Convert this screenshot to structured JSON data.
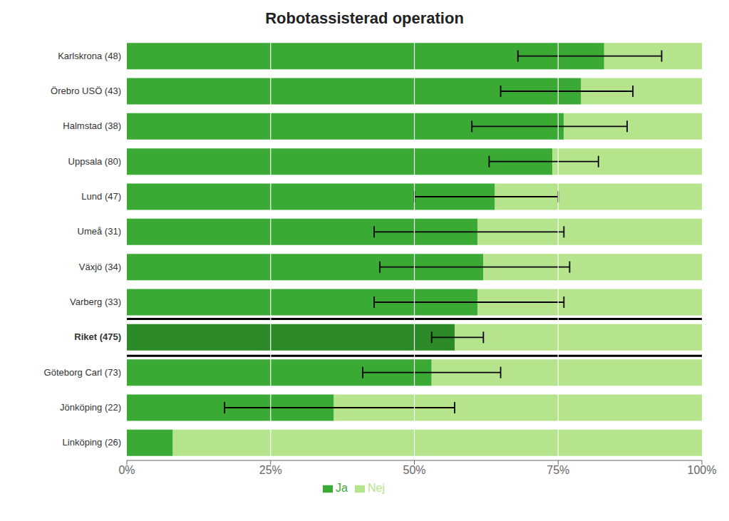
{
  "chart_data": {
    "type": "bar",
    "title": "Robotassisterad operation",
    "orientation": "horizontal",
    "stacked": true,
    "grid": true,
    "legend": "bottom",
    "categories": [
      "Karlskrona (48)",
      "Örebro USÖ (43)",
      "Halmstad (38)",
      "Uppsala (80)",
      "Lund (47)",
      "Umeå (31)",
      "Växjö (34)",
      "Varberg (33)",
      "Riket (475)",
      "Göteborg Carl (73)",
      "Jönköping (22)",
      "Linköping (26)"
    ],
    "series": [
      {
        "name": "Ja",
        "color": "#3aaa35",
        "colors": [
          "#3aaa35",
          "#3aaa35",
          "#3aaa35",
          "#3aaa35",
          "#3aaa35",
          "#3aaa35",
          "#3aaa35",
          "#3aaa35",
          "#2d8a28",
          "#3aaa35",
          "#3aaa35",
          "#3aaa35"
        ],
        "values": [
          83,
          79,
          76,
          74,
          64,
          61,
          62,
          61,
          57,
          53,
          36,
          8
        ],
        "error_low": [
          68,
          65,
          60,
          63,
          50,
          43,
          44,
          43,
          53,
          41,
          17,
          null
        ],
        "error_high": [
          93,
          88,
          87,
          82,
          75,
          76,
          77,
          76,
          62,
          65,
          57,
          null
        ]
      },
      {
        "name": "Nej",
        "color": "#b5e48c",
        "values": [
          17,
          21,
          24,
          26,
          36,
          39,
          38,
          39,
          43,
          47,
          64,
          92
        ]
      }
    ],
    "xlim": [
      0,
      100
    ],
    "xticks": [
      {
        "value": 0,
        "label": "0%"
      },
      {
        "value": 25,
        "label": "25%"
      },
      {
        "value": 50,
        "label": "50%"
      },
      {
        "value": 75,
        "label": "75%"
      },
      {
        "value": 100,
        "label": "100%"
      }
    ]
  }
}
